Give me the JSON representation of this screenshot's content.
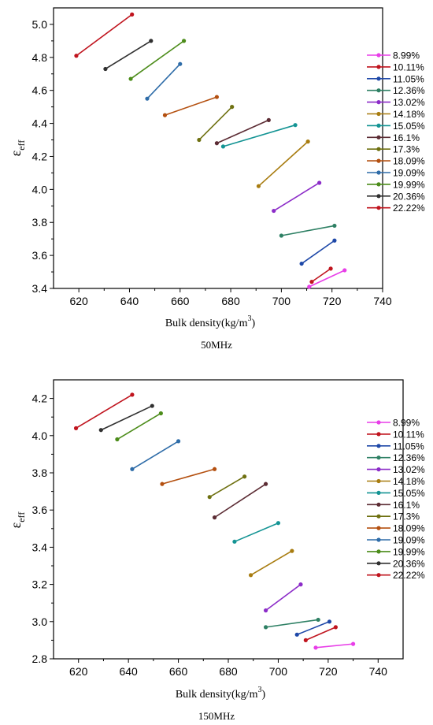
{
  "chart_data": [
    {
      "type": "line",
      "caption": "50MHz",
      "xlabel_main": "Bulk density(kg/m",
      "xlabel_sup": "3",
      "xlabel_end": ")",
      "ylabel_main": "ε",
      "ylabel_sub": "eff",
      "xlim": [
        610,
        740
      ],
      "ylim": [
        3.4,
        5.1
      ],
      "xticks": [
        620,
        640,
        660,
        680,
        700,
        720,
        740
      ],
      "xtick_labels": [
        "620",
        "640",
        "660",
        "680",
        "700",
        "720",
        "740"
      ],
      "yticks": [
        3.4,
        3.6,
        3.8,
        4.0,
        4.2,
        4.4,
        4.6,
        4.8,
        5.0
      ],
      "ytick_labels": [
        "3.4",
        "3.6",
        "3.8",
        "4.0",
        "4.2",
        "4.4",
        "4.6",
        "4.8",
        "5.0"
      ],
      "legend_position": "right",
      "series": [
        {
          "name": "8.99%",
          "color": "#e83ee8",
          "x": [
            711,
            725
          ],
          "y": [
            3.41,
            3.51
          ]
        },
        {
          "name": "10.11%",
          "color": "#c0141e",
          "x": [
            712,
            719.5
          ],
          "y": [
            3.44,
            3.52
          ]
        },
        {
          "name": "11.05%",
          "color": "#1e48a8",
          "x": [
            708,
            721
          ],
          "y": [
            3.55,
            3.69
          ]
        },
        {
          "name": "12.36%",
          "color": "#2e8064",
          "x": [
            700,
            721
          ],
          "y": [
            3.72,
            3.78
          ]
        },
        {
          "name": "13.02%",
          "color": "#8c2cc8",
          "x": [
            697,
            715
          ],
          "y": [
            3.87,
            4.04
          ]
        },
        {
          "name": "14.18%",
          "color": "#a87c10",
          "x": [
            691,
            710.5
          ],
          "y": [
            4.02,
            4.29
          ]
        },
        {
          "name": "15.05%",
          "color": "#149494",
          "x": [
            677,
            705.5
          ],
          "y": [
            4.26,
            4.39
          ]
        },
        {
          "name": "16.1%",
          "color": "#5c2c34",
          "x": [
            674.5,
            695
          ],
          "y": [
            4.28,
            4.42
          ]
        },
        {
          "name": "17.3%",
          "color": "#6e7010",
          "x": [
            667.5,
            680.5
          ],
          "y": [
            4.3,
            4.5
          ]
        },
        {
          "name": "18.09%",
          "color": "#b45010",
          "x": [
            654,
            674.5
          ],
          "y": [
            4.45,
            4.56
          ]
        },
        {
          "name": "19.09%",
          "color": "#2e6ca8",
          "x": [
            647,
            660
          ],
          "y": [
            4.55,
            4.76
          ]
        },
        {
          "name": "19.99%",
          "color": "#4c8c1a",
          "x": [
            640.5,
            661.5
          ],
          "y": [
            4.67,
            4.9
          ]
        },
        {
          "name": "20.36%",
          "color": "#303030",
          "x": [
            630.5,
            648.5
          ],
          "y": [
            4.73,
            4.9
          ]
        },
        {
          "name": "22.22%",
          "color": "#c0141e",
          "x": [
            619,
            641
          ],
          "y": [
            4.81,
            5.06
          ]
        }
      ]
    },
    {
      "type": "line",
      "caption": "150MHz",
      "xlabel_main": "Bulk density(kg/m",
      "xlabel_sup": "3",
      "xlabel_end": ")",
      "ylabel_main": "ε",
      "ylabel_sub": "eff",
      "xlim": [
        610,
        750
      ],
      "ylim": [
        2.8,
        4.3
      ],
      "xticks": [
        620,
        640,
        660,
        680,
        700,
        720,
        740
      ],
      "xtick_labels": [
        "620",
        "640",
        "660",
        "680",
        "700",
        "720",
        "740"
      ],
      "yticks": [
        2.8,
        3.0,
        3.2,
        3.4,
        3.6,
        3.8,
        4.0,
        4.2
      ],
      "ytick_labels": [
        "2.8",
        "3.0",
        "3.2",
        "3.4",
        "3.6",
        "3.8",
        "4.0",
        "4.2"
      ],
      "legend_position": "right",
      "series": [
        {
          "name": "8.99%",
          "color": "#e83ee8",
          "x": [
            715,
            730
          ],
          "y": [
            2.86,
            2.88
          ]
        },
        {
          "name": "10.11%",
          "color": "#c0141e",
          "x": [
            711,
            723
          ],
          "y": [
            2.9,
            2.97
          ]
        },
        {
          "name": "11.05%",
          "color": "#1e48a8",
          "x": [
            707.5,
            720.5
          ],
          "y": [
            2.93,
            3.0
          ]
        },
        {
          "name": "12.36%",
          "color": "#2e8064",
          "x": [
            695,
            716
          ],
          "y": [
            2.97,
            3.01
          ]
        },
        {
          "name": "13.02%",
          "color": "#8c2cc8",
          "x": [
            695,
            709
          ],
          "y": [
            3.06,
            3.2
          ]
        },
        {
          "name": "14.18%",
          "color": "#a87c10",
          "x": [
            689,
            705.5
          ],
          "y": [
            3.25,
            3.38
          ]
        },
        {
          "name": "15.05%",
          "color": "#149494",
          "x": [
            682.5,
            700
          ],
          "y": [
            3.43,
            3.53
          ]
        },
        {
          "name": "16.1%",
          "color": "#5c2c34",
          "x": [
            674.5,
            695
          ],
          "y": [
            3.56,
            3.74
          ]
        },
        {
          "name": "17.3%",
          "color": "#6e7010",
          "x": [
            672.5,
            686.5
          ],
          "y": [
            3.67,
            3.78
          ]
        },
        {
          "name": "18.09%",
          "color": "#b45010",
          "x": [
            653.5,
            674.5
          ],
          "y": [
            3.74,
            3.82
          ]
        },
        {
          "name": "19.09%",
          "color": "#2e6ca8",
          "x": [
            641.5,
            660
          ],
          "y": [
            3.82,
            3.97
          ]
        },
        {
          "name": "19.99%",
          "color": "#4c8c1a",
          "x": [
            635.5,
            653
          ],
          "y": [
            3.98,
            4.12
          ]
        },
        {
          "name": "20.36%",
          "color": "#303030",
          "x": [
            629,
            649.5
          ],
          "y": [
            4.03,
            4.16
          ]
        },
        {
          "name": "22.22%",
          "color": "#c0141e",
          "x": [
            619,
            641.5
          ],
          "y": [
            4.04,
            4.22
          ]
        }
      ]
    }
  ]
}
